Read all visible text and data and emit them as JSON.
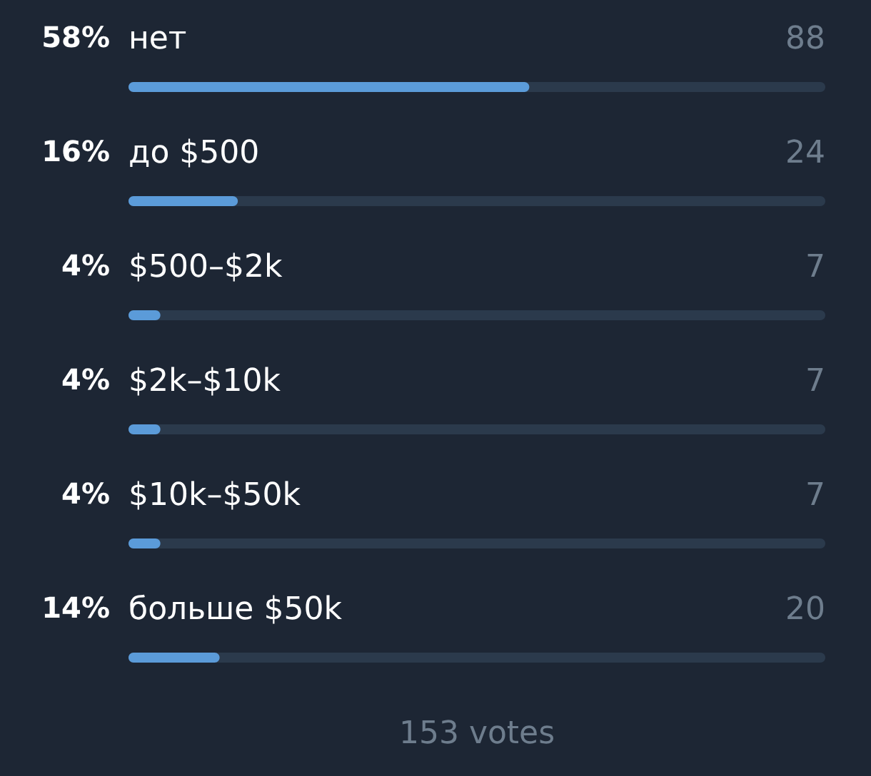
{
  "chart_data": {
    "type": "bar",
    "orientation": "horizontal",
    "categories": [
      "нет",
      "до $500",
      "$500–$2k",
      "$2k–$10k",
      "$10k–$50k",
      "больше $50k"
    ],
    "values": [
      88,
      24,
      7,
      7,
      7,
      20
    ],
    "color": "#5b9bd9",
    "xlim": [
      0,
      153
    ],
    "data_labels": true,
    "tick_labels": false,
    "annotations": [
      "58%",
      "16%",
      "4%",
      "4%",
      "4%",
      "14%",
      "153 votes"
    ]
  }
}
